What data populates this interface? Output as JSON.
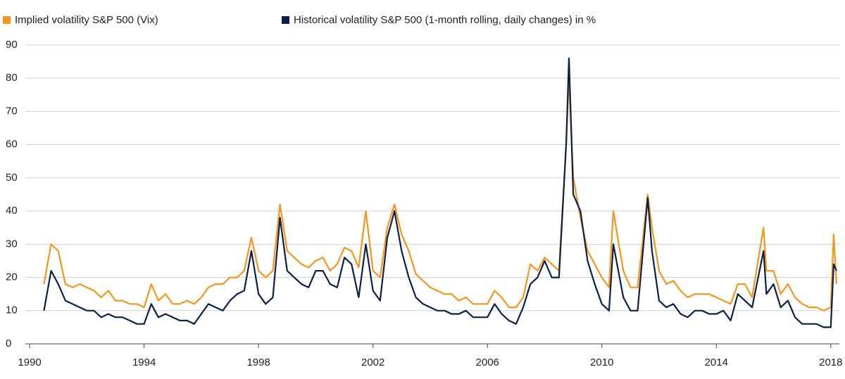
{
  "chart_data": {
    "type": "line",
    "x": [
      1990.5,
      1990.75,
      1991,
      1991.25,
      1991.5,
      1991.75,
      1992,
      1992.25,
      1992.5,
      1992.75,
      1993,
      1993.25,
      1993.5,
      1993.75,
      1994,
      1994.25,
      1994.5,
      1994.75,
      1995,
      1995.25,
      1995.5,
      1995.75,
      1996,
      1996.25,
      1996.5,
      1996.75,
      1997,
      1997.25,
      1997.5,
      1997.75,
      1998,
      1998.25,
      1998.5,
      1998.75,
      1999,
      1999.25,
      1999.5,
      1999.75,
      2000,
      2000.25,
      2000.5,
      2000.75,
      2001,
      2001.25,
      2001.5,
      2001.75,
      2002,
      2002.25,
      2002.5,
      2002.75,
      2003,
      2003.25,
      2003.5,
      2003.75,
      2004,
      2004.25,
      2004.5,
      2004.75,
      2005,
      2005.25,
      2005.5,
      2005.75,
      2006,
      2006.25,
      2006.5,
      2006.75,
      2007,
      2007.25,
      2007.5,
      2007.75,
      2008,
      2008.25,
      2008.5,
      2008.75,
      2008.85,
      2009,
      2009.25,
      2009.5,
      2009.75,
      2010,
      2010.25,
      2010.4,
      2010.75,
      2011,
      2011.25,
      2011.6,
      2011.75,
      2012,
      2012.25,
      2012.5,
      2012.75,
      2013,
      2013.25,
      2013.5,
      2013.75,
      2014,
      2014.25,
      2014.5,
      2014.75,
      2015,
      2015.25,
      2015.65,
      2015.75,
      2016,
      2016.25,
      2016.5,
      2016.75,
      2017,
      2017.25,
      2017.5,
      2017.75,
      2018,
      2018.1,
      2018.2
    ],
    "series": [
      {
        "name": "Implied volatility S&P 500 (Vix)",
        "color": "#f7941d",
        "values": [
          18,
          30,
          28,
          18,
          17,
          18,
          17,
          16,
          14,
          16,
          13,
          13,
          12,
          12,
          11,
          18,
          13,
          15,
          12,
          12,
          13,
          12,
          14,
          17,
          18,
          18,
          20,
          20,
          22,
          32,
          22,
          20,
          22,
          42,
          28,
          26,
          24,
          23,
          25,
          26,
          22,
          24,
          29,
          28,
          23,
          40,
          22,
          20,
          35,
          42,
          33,
          28,
          21,
          19,
          17,
          16,
          15,
          15,
          13,
          14,
          12,
          12,
          12,
          16,
          14,
          11,
          11,
          14,
          24,
          22,
          26,
          24,
          22,
          60,
          80,
          50,
          38,
          28,
          24,
          20,
          17,
          40,
          22,
          17,
          17,
          45,
          35,
          22,
          18,
          19,
          16,
          14,
          15,
          15,
          15,
          14,
          13,
          12,
          18,
          18,
          14,
          35,
          22,
          22,
          15,
          18,
          14,
          12,
          11,
          11,
          10,
          11,
          33,
          18
        ]
      },
      {
        "name": "Historical volatility S&P 500 (1-month rolling, daily changes) in %",
        "color": "#0b1f47",
        "values": [
          10,
          22,
          18,
          13,
          12,
          11,
          10,
          10,
          8,
          9,
          8,
          8,
          7,
          6,
          6,
          12,
          8,
          9,
          8,
          7,
          7,
          6,
          9,
          12,
          11,
          10,
          13,
          15,
          16,
          28,
          15,
          12,
          14,
          38,
          22,
          20,
          18,
          17,
          22,
          22,
          18,
          17,
          26,
          24,
          14,
          30,
          16,
          13,
          32,
          40,
          28,
          20,
          14,
          12,
          11,
          10,
          10,
          9,
          9,
          10,
          8,
          8,
          8,
          12,
          9,
          7,
          6,
          11,
          18,
          20,
          25,
          20,
          20,
          60,
          86,
          45,
          40,
          25,
          18,
          12,
          10,
          30,
          14,
          10,
          10,
          44,
          28,
          13,
          11,
          12,
          9,
          8,
          10,
          10,
          9,
          9,
          10,
          7,
          15,
          13,
          11,
          28,
          15,
          18,
          11,
          13,
          8,
          6,
          6,
          6,
          5,
          5,
          24,
          22
        ]
      }
    ],
    "xlim": [
      1989.85,
      2018.3
    ],
    "xticks": [
      1990,
      1994,
      1998,
      2002,
      2006,
      2010,
      2014,
      2018
    ],
    "ylim": [
      0,
      90
    ],
    "yticks": [
      0,
      10,
      20,
      30,
      40,
      50,
      60,
      70,
      80,
      90
    ],
    "grid": true
  }
}
